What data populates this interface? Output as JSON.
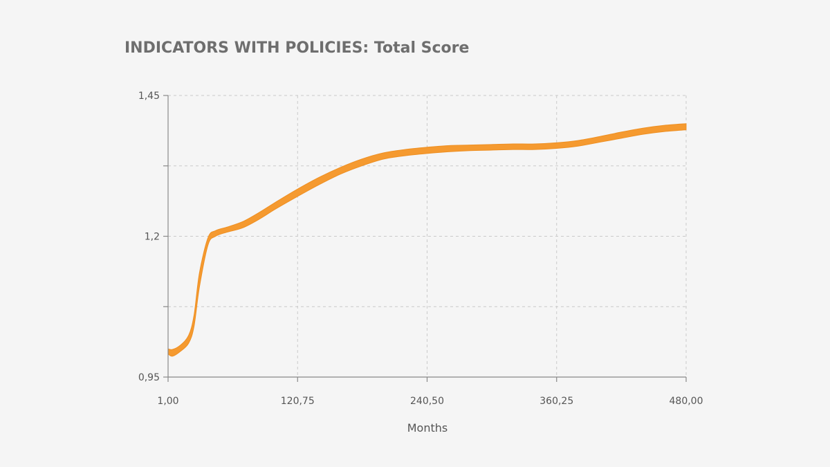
{
  "chart_data": {
    "type": "area",
    "title": "INDICATORS WITH POLICIES: Total Score",
    "xlabel": "Months",
    "ylabel": "",
    "xlim": [
      1.0,
      480.0
    ],
    "ylim": [
      0.95,
      1.45
    ],
    "x_ticks": [
      1.0,
      120.75,
      240.5,
      360.25,
      480.0
    ],
    "x_tick_labels": [
      "1,00",
      "120,75",
      "240,50",
      "360,25",
      "480,00"
    ],
    "y_ticks": [
      0.95,
      1.075,
      1.2,
      1.325,
      1.45
    ],
    "y_tick_labels": [
      "0,95",
      "",
      "1,2",
      "",
      "1,45"
    ],
    "grid": true,
    "colors": {
      "band": "#f59a30",
      "band_edge": "#ee8f22"
    },
    "series": [
      {
        "x": [
          1,
          5,
          12,
          20,
          25,
          30,
          38,
          45,
          55,
          70,
          85,
          100,
          120,
          140,
          160,
          180,
          200,
          220,
          240,
          260,
          280,
          300,
          320,
          340,
          360,
          380,
          400,
          420,
          440,
          460,
          480
        ],
        "lower": [
          0.991,
          0.987,
          0.995,
          1.01,
          1.04,
          1.11,
          1.185,
          1.2,
          1.207,
          1.215,
          1.23,
          1.248,
          1.27,
          1.291,
          1.31,
          1.325,
          1.337,
          1.343,
          1.347,
          1.35,
          1.352,
          1.353,
          1.354,
          1.354,
          1.356,
          1.36,
          1.367,
          1.374,
          1.381,
          1.386,
          1.389
        ],
        "upper": [
          1.0,
          0.999,
          1.006,
          1.024,
          1.06,
          1.135,
          1.198,
          1.21,
          1.216,
          1.226,
          1.242,
          1.26,
          1.283,
          1.304,
          1.322,
          1.337,
          1.348,
          1.354,
          1.358,
          1.361,
          1.362,
          1.363,
          1.364,
          1.364,
          1.366,
          1.37,
          1.377,
          1.385,
          1.392,
          1.397,
          1.4
        ]
      }
    ]
  }
}
